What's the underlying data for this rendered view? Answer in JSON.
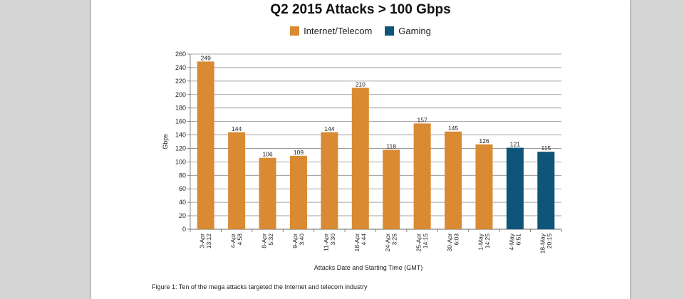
{
  "colors": {
    "internet": "#d98a32",
    "gaming": "#0f5579"
  },
  "chart_data": {
    "type": "bar",
    "title": "Q2 2015 Attacks > 100 Gbps",
    "xlabel": "Attacks Date and Starting Time (GMT)",
    "ylabel": "Gbps",
    "ylim": [
      0,
      260
    ],
    "ytick_step": 20,
    "grid": true,
    "legend_position": "top-center",
    "series_names": [
      "Internet/Telecom",
      "Gaming"
    ],
    "categories": [
      [
        "3-Apr",
        "13:12"
      ],
      [
        "4-Apr",
        "4:58"
      ],
      [
        "8-Apr",
        "5:32"
      ],
      [
        "9-Apr",
        "3:40"
      ],
      [
        "11-Apr",
        "3:30"
      ],
      [
        "18-Apr",
        "4:44"
      ],
      [
        "24-Apr",
        "3:25"
      ],
      [
        "25-Apr",
        "14:15"
      ],
      [
        "30-Apr",
        "6:03"
      ],
      [
        "1-May",
        "14:25"
      ],
      [
        "4-May",
        "6:51"
      ],
      [
        "18-May",
        "20:15"
      ]
    ],
    "values": [
      249,
      144,
      106,
      109,
      144,
      210,
      118,
      157,
      145,
      126,
      121,
      115
    ],
    "series_index": [
      0,
      0,
      0,
      0,
      0,
      0,
      0,
      0,
      0,
      0,
      1,
      1
    ]
  },
  "caption": "Figure 1: Ten of the mega attacks targeted the Internet and telecom industry"
}
